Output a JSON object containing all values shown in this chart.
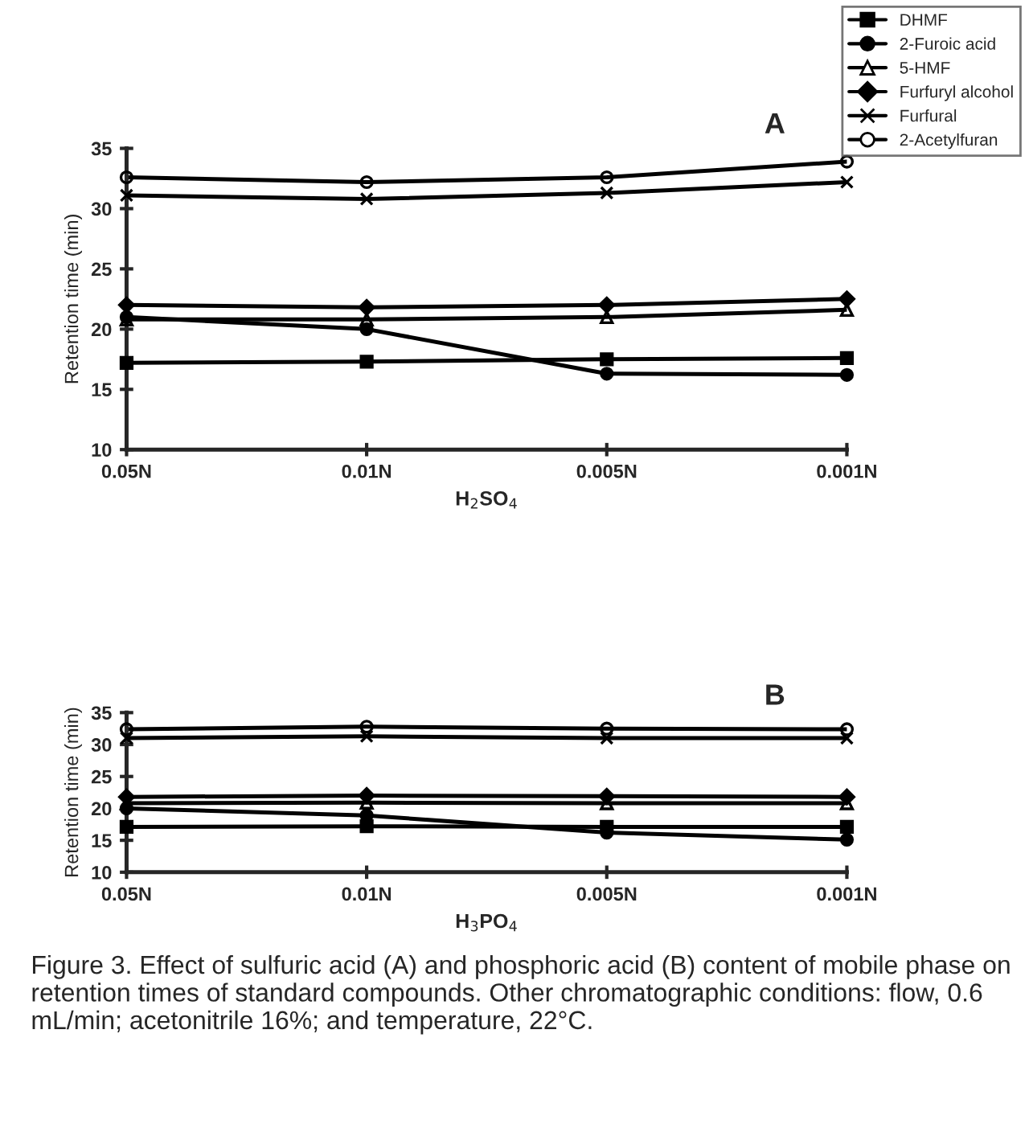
{
  "chart_data": [
    {
      "type": "line",
      "title": "A",
      "xlabel": "H$_{2}$SO$_{4}$",
      "ylabel": "Retention time (min)",
      "categories": [
        "0.05N",
        "0.01N",
        "0.005N",
        "0.001N"
      ],
      "ylim": [
        10,
        35
      ],
      "yticks": [
        10,
        15,
        20,
        25,
        30,
        35
      ],
      "grid": false,
      "legend": "right",
      "line_style": "solid",
      "series": [
        {
          "name": "DHMF",
          "color": "#000000",
          "marker": "square",
          "values": [
            17.2,
            17.3,
            17.5,
            17.6
          ]
        },
        {
          "name": "2-Furoic acid",
          "color": "#000000",
          "marker": "circle",
          "values": [
            21.0,
            20.0,
            16.3,
            16.2
          ]
        },
        {
          "name": "5-HMF",
          "color": "#000000",
          "marker": "triangle",
          "values": [
            20.8,
            20.8,
            21.0,
            21.6
          ]
        },
        {
          "name": "Furfuryl alcohol",
          "color": "#000000",
          "marker": "diamond",
          "values": [
            22.0,
            21.8,
            22.0,
            22.5
          ]
        },
        {
          "name": "Furfural",
          "color": "#000000",
          "marker": "cross",
          "values": [
            31.1,
            30.8,
            31.3,
            32.2
          ]
        },
        {
          "name": "2-Acetylfuran",
          "color": "#000000",
          "marker": "open circle",
          "values": [
            32.6,
            32.2,
            32.6,
            33.9
          ]
        }
      ]
    },
    {
      "type": "line",
      "title": "B",
      "xlabel": "H$_{3}$PO$_{4}$",
      "ylabel": "Retention time (min)",
      "categories": [
        "0.05N",
        "0.01N",
        "0.005N",
        "0.001N"
      ],
      "ylim": [
        10,
        35
      ],
      "yticks": [
        10,
        15,
        20,
        25,
        30,
        35
      ],
      "grid": false,
      "line_style": "solid",
      "annotations": [
        "Figure 3. Effect of sulfuric acid (A) and phosphoric acid (B) content of mobile phase on retention times of standard compounds. Other chromatographic conditions: flow, 0.6 mL/min; acetonitrile 16%; and temperature, 22°C."
      ],
      "series": [
        {
          "color": "#000000",
          "marker": "square",
          "values": [
            17.1,
            17.2,
            17.1,
            17.1
          ]
        },
        {
          "color": "#000000",
          "marker": "circle",
          "values": [
            20.0,
            18.9,
            16.2,
            15.1
          ]
        },
        {
          "color": "#000000",
          "marker": "triangle",
          "values": [
            20.8,
            20.9,
            20.8,
            20.8
          ]
        },
        {
          "color": "#000000",
          "marker": "diamond",
          "values": [
            21.8,
            22.0,
            21.9,
            21.8
          ]
        },
        {
          "color": "#000000",
          "marker": "cross",
          "values": [
            31.0,
            31.3,
            31.0,
            31.0
          ]
        },
        {
          "color": "#000000",
          "marker": "open circle",
          "values": [
            32.4,
            32.8,
            32.5,
            32.4
          ]
        }
      ]
    }
  ]
}
